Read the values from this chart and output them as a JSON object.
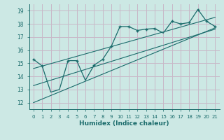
{
  "title": "",
  "xlabel": "Humidex (Indice chaleur)",
  "ylabel": "",
  "bg_color": "#cce8e4",
  "grid_color": "#c8b8c8",
  "line_color": "#1a6b6b",
  "xlim": [
    -0.5,
    21.5
  ],
  "ylim": [
    11.5,
    19.5
  ],
  "xticks": [
    0,
    1,
    2,
    3,
    4,
    5,
    6,
    7,
    8,
    9,
    10,
    11,
    12,
    13,
    14,
    15,
    16,
    17,
    18,
    19,
    20,
    21
  ],
  "yticks": [
    12,
    13,
    14,
    15,
    16,
    17,
    18,
    19
  ],
  "data_x": [
    0,
    1,
    2,
    3,
    4,
    5,
    6,
    7,
    8,
    9,
    10,
    11,
    12,
    13,
    14,
    15,
    16,
    17,
    18,
    19,
    20,
    21
  ],
  "data_y": [
    15.3,
    14.8,
    12.8,
    13.0,
    15.2,
    15.2,
    13.7,
    14.85,
    15.3,
    16.3,
    17.8,
    17.8,
    17.5,
    17.6,
    17.65,
    17.3,
    18.2,
    18.0,
    18.1,
    19.1,
    18.2,
    17.8
  ],
  "line1_x": [
    0,
    21
  ],
  "line1_y": [
    13.3,
    17.6
  ],
  "line2_x": [
    0,
    21
  ],
  "line2_y": [
    12.0,
    17.7
  ],
  "line3_x": [
    0,
    21
  ],
  "line3_y": [
    14.6,
    18.5
  ],
  "marker_x": [
    0,
    1,
    4,
    5,
    7,
    8,
    9,
    10,
    11,
    12,
    13,
    14,
    16,
    17,
    18,
    19,
    20,
    21
  ],
  "marker_y": [
    15.3,
    14.8,
    15.2,
    15.2,
    14.85,
    15.3,
    16.3,
    17.8,
    17.8,
    17.5,
    17.6,
    17.65,
    18.2,
    18.0,
    18.1,
    19.1,
    18.2,
    17.8
  ]
}
